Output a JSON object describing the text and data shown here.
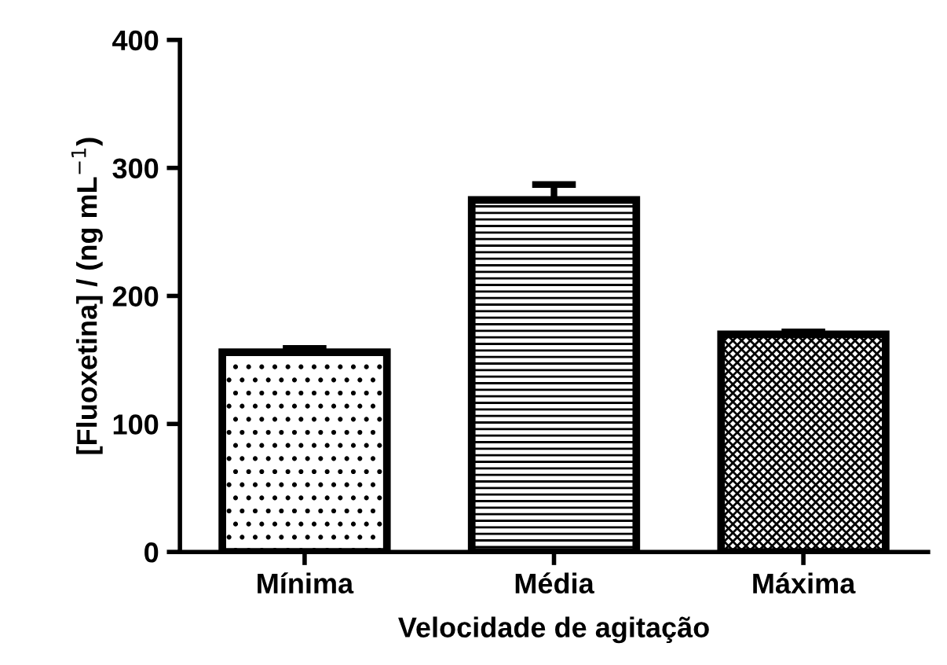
{
  "chart_data": {
    "type": "bar",
    "xlabel": "Velocidade de agitação",
    "ylabel": "[Fluoxetina] / (ng mL$^{−1}$)",
    "categories": [
      "Mínima",
      "Média",
      "Máxima"
    ],
    "values": [
      156,
      275,
      170
    ],
    "errors": [
      3,
      12,
      2
    ],
    "color": "#000000",
    "ylim": [
      0,
      400
    ],
    "yticks": [
      0,
      100,
      200,
      300,
      400
    ],
    "grid": false
  }
}
